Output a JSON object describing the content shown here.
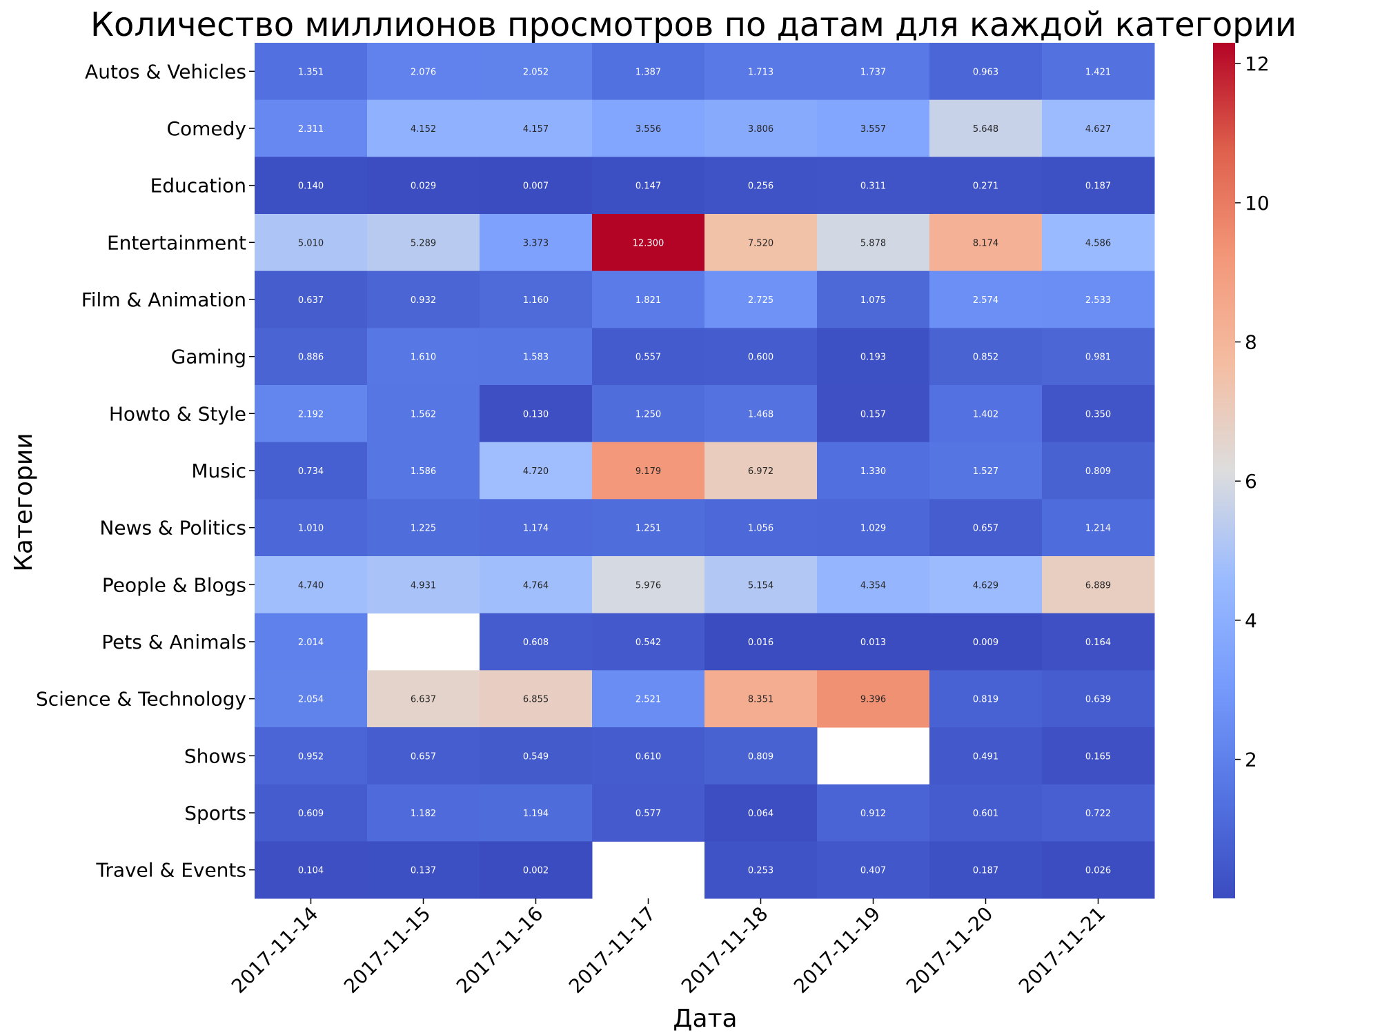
{
  "chart_data": {
    "type": "heatmap",
    "title": "Количество миллионов просмотров по датам для каждой категории",
    "xlabel": "Дата",
    "ylabel": "Категории",
    "x": [
      "2017-11-14",
      "2017-11-15",
      "2017-11-16",
      "2017-11-17",
      "2017-11-18",
      "2017-11-19",
      "2017-11-20",
      "2017-11-21"
    ],
    "y": [
      "Autos & Vehicles",
      "Comedy",
      "Education",
      "Entertainment",
      "Film & Animation",
      "Gaming",
      "Howto & Style",
      "Music",
      "News & Politics",
      "People & Blogs",
      "Pets & Animals",
      "Science & Technology",
      "Shows",
      "Sports",
      "Travel & Events"
    ],
    "values": [
      [
        1.351,
        2.076,
        2.052,
        1.387,
        1.713,
        1.737,
        0.963,
        1.421
      ],
      [
        2.311,
        4.152,
        4.157,
        3.556,
        3.806,
        3.557,
        5.648,
        4.627
      ],
      [
        0.14,
        0.029,
        0.007,
        0.147,
        0.256,
        0.311,
        0.271,
        0.187
      ],
      [
        5.01,
        5.289,
        3.373,
        12.3,
        7.52,
        5.878,
        8.174,
        4.586
      ],
      [
        0.637,
        0.932,
        1.16,
        1.821,
        2.725,
        1.075,
        2.574,
        2.533
      ],
      [
        0.886,
        1.61,
        1.583,
        0.557,
        0.6,
        0.193,
        0.852,
        0.981
      ],
      [
        2.192,
        1.562,
        0.13,
        1.25,
        1.468,
        0.157,
        1.402,
        0.35
      ],
      [
        0.734,
        1.586,
        4.72,
        9.179,
        6.972,
        1.33,
        1.527,
        0.809
      ],
      [
        1.01,
        1.225,
        1.174,
        1.251,
        1.056,
        1.029,
        0.657,
        1.214
      ],
      [
        4.74,
        4.931,
        4.764,
        5.976,
        5.154,
        4.354,
        4.629,
        6.889
      ],
      [
        2.014,
        null,
        0.608,
        0.542,
        0.016,
        0.013,
        0.009,
        0.164
      ],
      [
        2.054,
        6.637,
        6.855,
        2.521,
        8.351,
        9.396,
        0.819,
        0.639
      ],
      [
        0.952,
        0.657,
        0.549,
        0.61,
        0.809,
        null,
        0.491,
        0.165
      ],
      [
        0.609,
        1.182,
        1.194,
        0.577,
        0.064,
        0.912,
        0.601,
        0.722
      ],
      [
        0.104,
        0.137,
        0.002,
        null,
        0.253,
        0.407,
        0.187,
        0.026
      ]
    ],
    "value_format": "3 decimals",
    "colormap": "coolwarm",
    "vmin": 0.002,
    "vmax": 12.3,
    "colorbar_ticks": [
      2,
      4,
      6,
      8,
      10,
      12
    ],
    "legend_placement": "right"
  }
}
